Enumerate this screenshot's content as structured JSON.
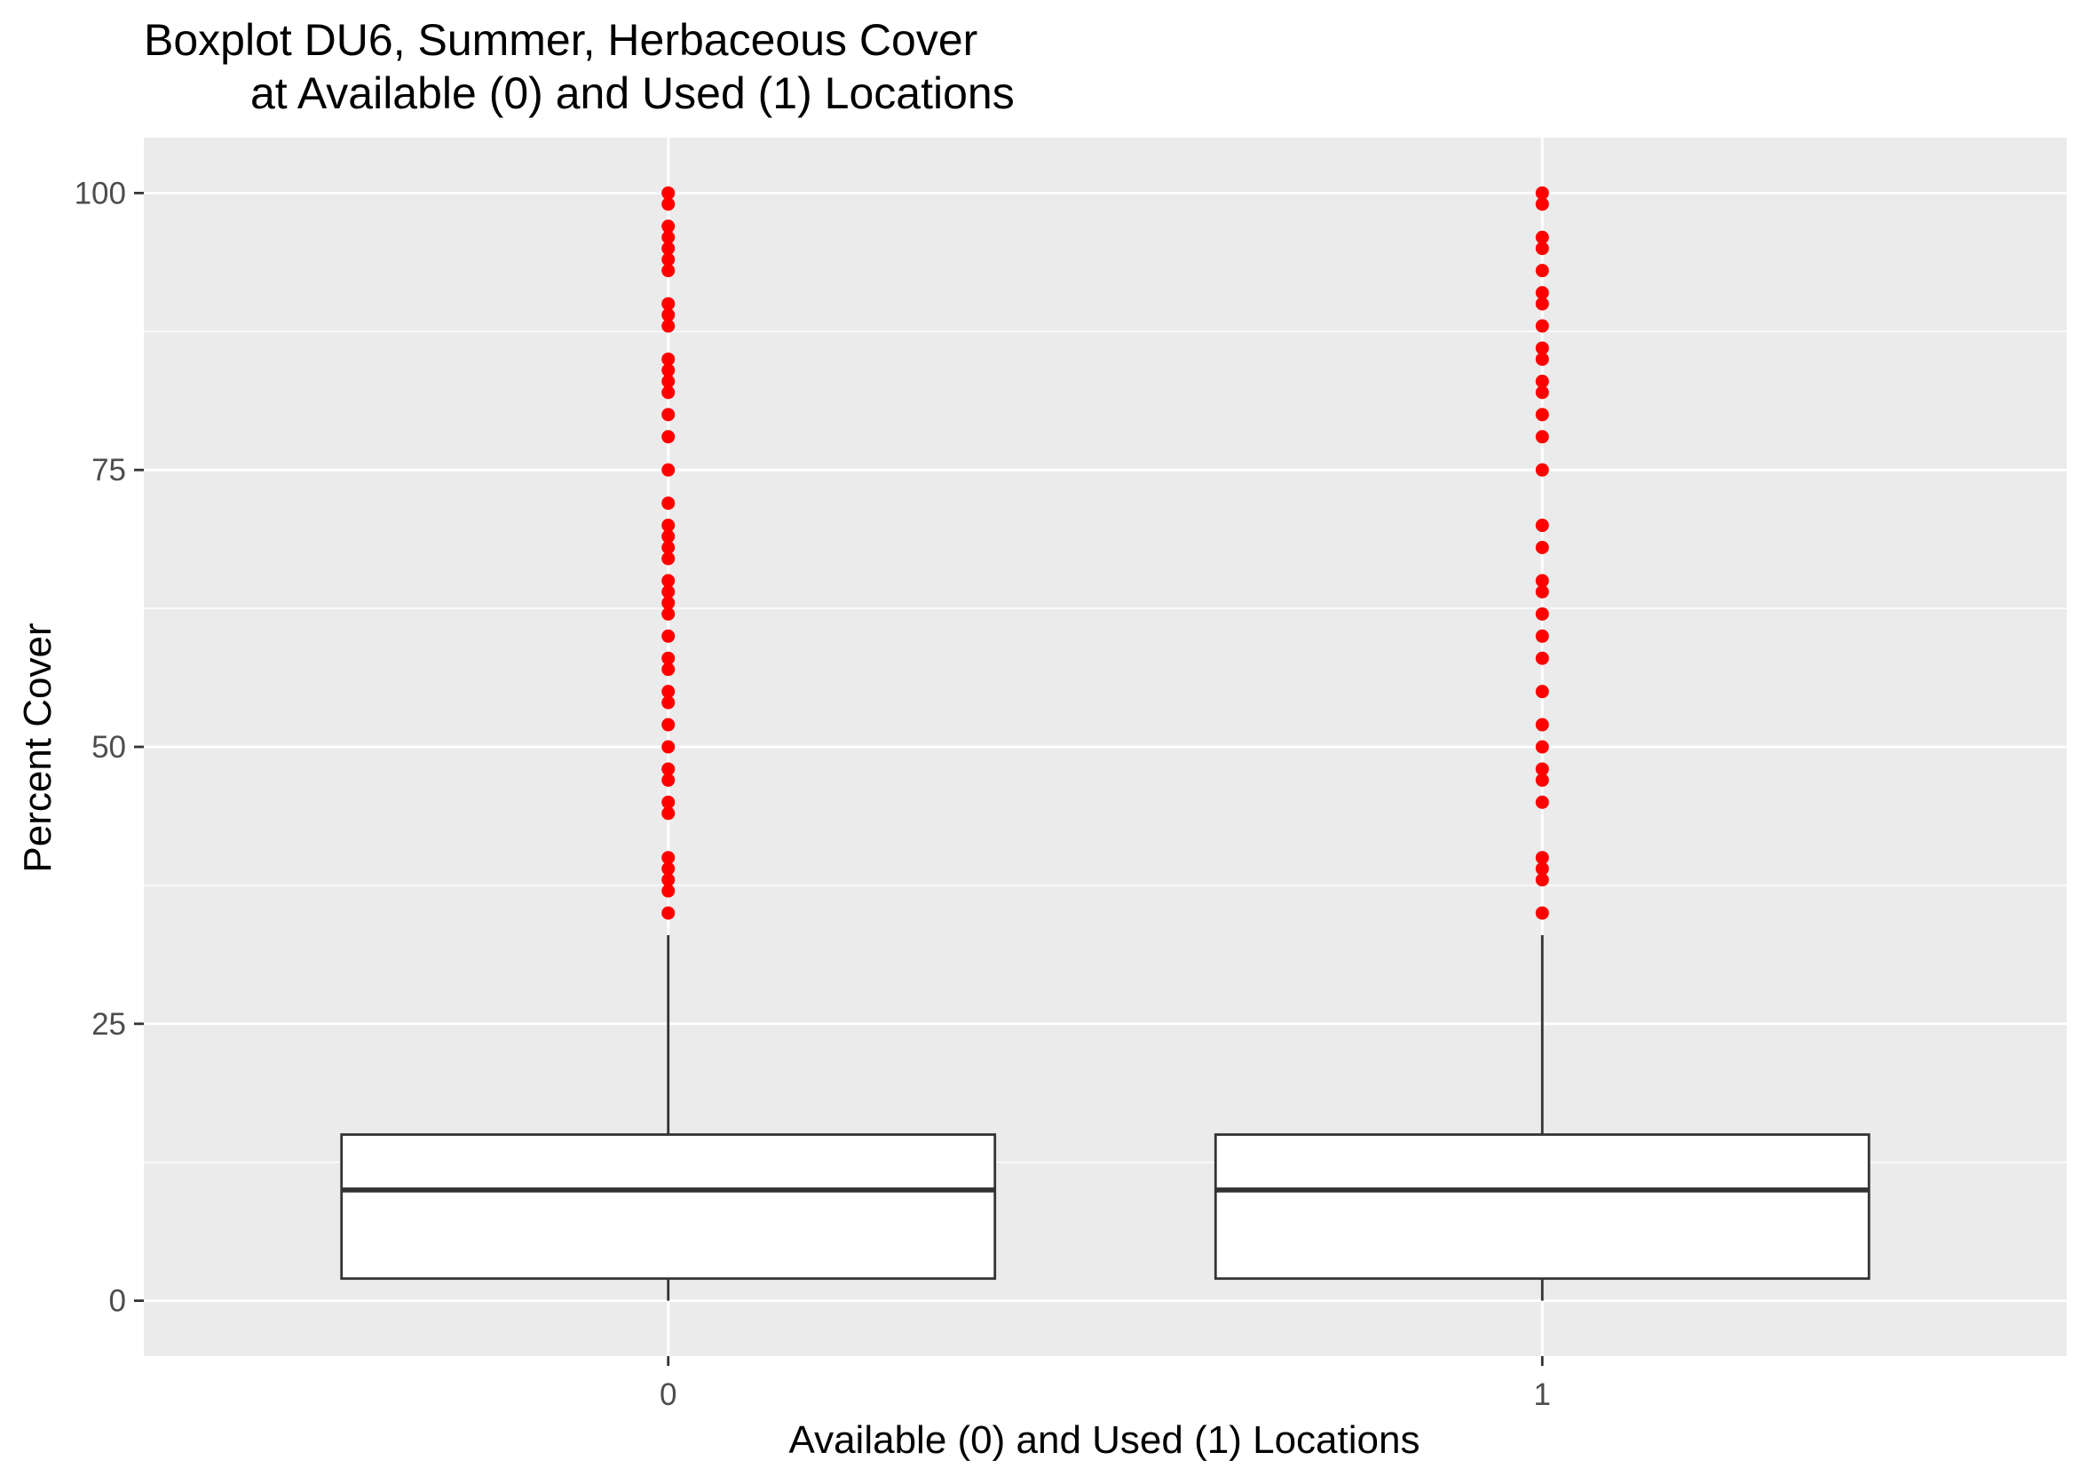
{
  "chart_data": {
    "type": "boxplot",
    "title_line1": "Boxplot DU6, Summer, Herbaceous Cover",
    "title_line2": "at Available (0) and Used (1) Locations",
    "xlabel": "Available (0) and Used (1) Locations",
    "ylabel": "Percent Cover",
    "categories": [
      "0",
      "1"
    ],
    "ylim": [
      -5,
      105
    ],
    "yticks": [
      0,
      25,
      50,
      75,
      100
    ],
    "ytick_labels": [
      "0",
      "25",
      "50",
      "75",
      "100"
    ],
    "grid": true,
    "legend": "none",
    "colors": {
      "panel": "#ebebeb",
      "grid": "#ffffff",
      "box_fill": "#ffffff",
      "box_line": "#333333",
      "outlier": "#ff0000",
      "tick_label": "#4d4d4d"
    },
    "boxes": [
      {
        "category": "0",
        "min": 0,
        "q1": 2,
        "median": 10,
        "q3": 15,
        "whisker_high": 33,
        "outliers": [
          35,
          37,
          38,
          39,
          40,
          44,
          45,
          47,
          48,
          50,
          52,
          54,
          55,
          57,
          58,
          60,
          62,
          63,
          64,
          65,
          67,
          68,
          69,
          70,
          72,
          75,
          78,
          80,
          82,
          83,
          84,
          85,
          88,
          89,
          90,
          93,
          94,
          95,
          96,
          97,
          99,
          100
        ]
      },
      {
        "category": "1",
        "min": 0,
        "q1": 2,
        "median": 10,
        "q3": 15,
        "whisker_high": 33,
        "outliers": [
          35,
          38,
          39,
          40,
          45,
          47,
          48,
          50,
          52,
          55,
          58,
          60,
          62,
          64,
          65,
          68,
          70,
          75,
          78,
          80,
          82,
          83,
          85,
          86,
          88,
          90,
          91,
          93,
          95,
          96,
          99,
          100
        ]
      }
    ]
  }
}
